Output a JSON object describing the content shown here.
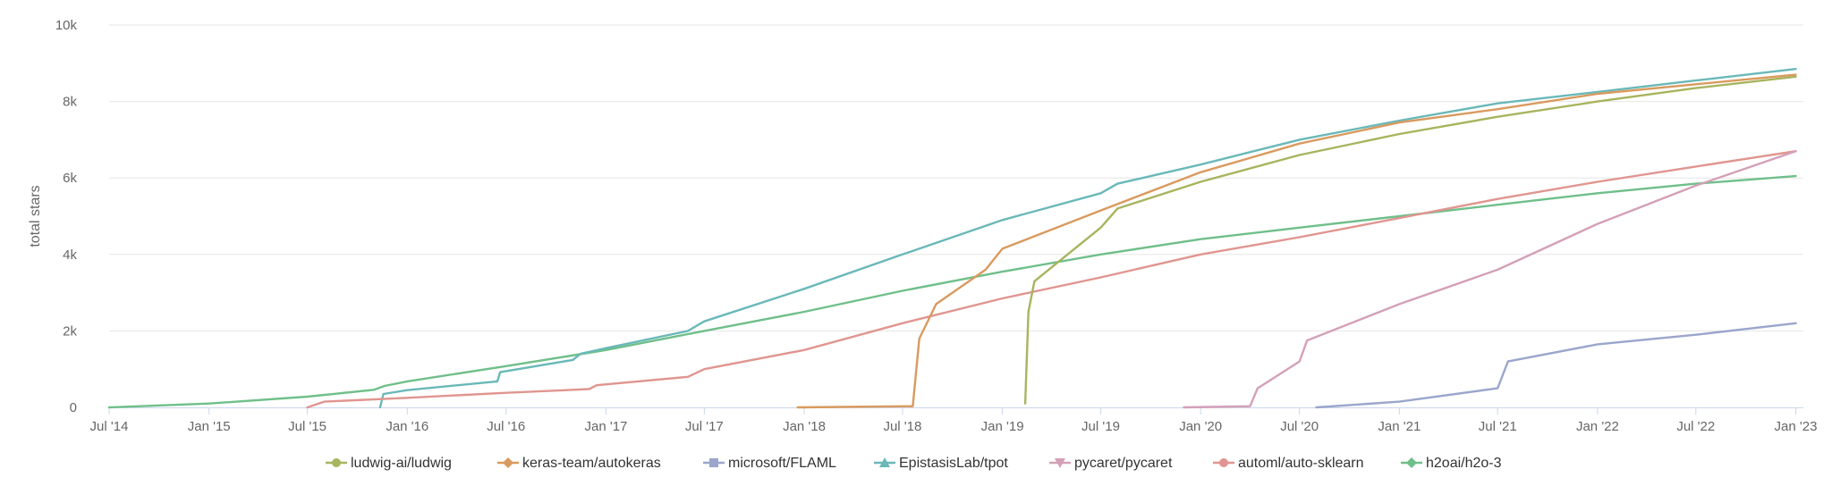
{
  "chart_data": {
    "type": "line",
    "title": "",
    "xlabel": "",
    "ylabel": "total stars",
    "x_type": "date",
    "xlim": [
      "2014-07-01",
      "2023-01-15"
    ],
    "ylim": [
      0,
      10000
    ],
    "grid": "horizontal",
    "legend_position": "bottom",
    "y_ticks": [
      {
        "value": 0,
        "label": "0"
      },
      {
        "value": 2000,
        "label": "2k"
      },
      {
        "value": 4000,
        "label": "4k"
      },
      {
        "value": 6000,
        "label": "6k"
      },
      {
        "value": 8000,
        "label": "8k"
      },
      {
        "value": 10000,
        "label": "10k"
      }
    ],
    "x_ticks": [
      {
        "date": "2014-07-01",
        "label": "Jul '14"
      },
      {
        "date": "2015-01-01",
        "label": "Jan '15"
      },
      {
        "date": "2015-07-01",
        "label": "Jul '15"
      },
      {
        "date": "2016-01-01",
        "label": "Jan '16"
      },
      {
        "date": "2016-07-01",
        "label": "Jul '16"
      },
      {
        "date": "2017-01-01",
        "label": "Jan '17"
      },
      {
        "date": "2017-07-01",
        "label": "Jul '17"
      },
      {
        "date": "2018-01-01",
        "label": "Jan '18"
      },
      {
        "date": "2018-07-01",
        "label": "Jul '18"
      },
      {
        "date": "2019-01-01",
        "label": "Jan '19"
      },
      {
        "date": "2019-07-01",
        "label": "Jul '19"
      },
      {
        "date": "2020-01-01",
        "label": "Jan '20"
      },
      {
        "date": "2020-07-01",
        "label": "Jul '20"
      },
      {
        "date": "2021-01-01",
        "label": "Jan '21"
      },
      {
        "date": "2021-07-01",
        "label": "Jul '21"
      },
      {
        "date": "2022-01-01",
        "label": "Jan '22"
      },
      {
        "date": "2022-07-01",
        "label": "Jul '22"
      },
      {
        "date": "2023-01-01",
        "label": "Jan '23"
      }
    ],
    "series": [
      {
        "name": "h2oai/h2o-3",
        "color": "#6fbf8a",
        "marker": "diamond",
        "points": [
          [
            "2014-07-01",
            0
          ],
          [
            "2015-01-01",
            100
          ],
          [
            "2015-07-01",
            280
          ],
          [
            "2015-11-01",
            460
          ],
          [
            "2015-11-20",
            560
          ],
          [
            "2016-01-01",
            680
          ],
          [
            "2016-07-01",
            1080
          ],
          [
            "2017-01-01",
            1500
          ],
          [
            "2017-07-01",
            2000
          ],
          [
            "2018-01-01",
            2500
          ],
          [
            "2018-07-01",
            3050
          ],
          [
            "2019-01-01",
            3550
          ],
          [
            "2019-07-01",
            4000
          ],
          [
            "2020-01-01",
            4400
          ],
          [
            "2020-07-01",
            4700
          ],
          [
            "2021-01-01",
            5000
          ],
          [
            "2021-07-01",
            5300
          ],
          [
            "2022-01-01",
            5600
          ],
          [
            "2022-07-01",
            5850
          ],
          [
            "2023-01-01",
            6050
          ]
        ]
      },
      {
        "name": "EpistasisLab/tpot",
        "color": "#6ab8b8",
        "marker": "triangle",
        "points": [
          [
            "2015-11-12",
            0
          ],
          [
            "2015-11-18",
            350
          ],
          [
            "2016-01-01",
            450
          ],
          [
            "2016-06-15",
            680
          ],
          [
            "2016-06-20",
            920
          ],
          [
            "2016-11-01",
            1240
          ],
          [
            "2016-11-15",
            1400
          ],
          [
            "2017-01-01",
            1550
          ],
          [
            "2017-06-01",
            2000
          ],
          [
            "2017-07-01",
            2250
          ],
          [
            "2018-01-01",
            3100
          ],
          [
            "2018-07-01",
            4000
          ],
          [
            "2019-01-01",
            4900
          ],
          [
            "2019-07-01",
            5600
          ],
          [
            "2019-08-01",
            5850
          ],
          [
            "2020-01-01",
            6350
          ],
          [
            "2020-07-01",
            7000
          ],
          [
            "2021-01-01",
            7500
          ],
          [
            "2021-07-01",
            7950
          ],
          [
            "2022-01-01",
            8250
          ],
          [
            "2022-07-01",
            8550
          ],
          [
            "2023-01-01",
            8850
          ]
        ]
      },
      {
        "name": "automl/auto-sklearn",
        "color": "#e09590",
        "marker": "circle",
        "points": [
          [
            "2015-07-01",
            0
          ],
          [
            "2015-08-01",
            150
          ],
          [
            "2016-01-01",
            250
          ],
          [
            "2016-07-01",
            380
          ],
          [
            "2016-12-01",
            480
          ],
          [
            "2016-12-15",
            580
          ],
          [
            "2017-06-01",
            800
          ],
          [
            "2017-07-01",
            1000
          ],
          [
            "2018-01-01",
            1500
          ],
          [
            "2018-07-01",
            2200
          ],
          [
            "2019-01-01",
            2850
          ],
          [
            "2019-07-01",
            3400
          ],
          [
            "2020-01-01",
            4000
          ],
          [
            "2020-07-01",
            4450
          ],
          [
            "2021-01-01",
            4950
          ],
          [
            "2021-07-01",
            5450
          ],
          [
            "2022-01-01",
            5900
          ],
          [
            "2022-07-01",
            6300
          ],
          [
            "2023-01-01",
            6700
          ]
        ]
      },
      {
        "name": "keras-team/autokeras",
        "color": "#d99a5e",
        "marker": "diamond",
        "points": [
          [
            "2017-12-20",
            0
          ],
          [
            "2018-07-20",
            30
          ],
          [
            "2018-08-01",
            1800
          ],
          [
            "2018-09-01",
            2700
          ],
          [
            "2018-12-01",
            3600
          ],
          [
            "2019-01-01",
            4150
          ],
          [
            "2019-07-01",
            5150
          ],
          [
            "2020-01-01",
            6150
          ],
          [
            "2020-07-01",
            6900
          ],
          [
            "2021-01-01",
            7450
          ],
          [
            "2021-07-01",
            7800
          ],
          [
            "2022-01-01",
            8200
          ],
          [
            "2022-07-01",
            8450
          ],
          [
            "2023-01-01",
            8700
          ]
        ]
      },
      {
        "name": "ludwig-ai/ludwig",
        "color": "#a8b45e",
        "marker": "circle",
        "points": [
          [
            "2019-02-12",
            100
          ],
          [
            "2019-02-18",
            2500
          ],
          [
            "2019-03-01",
            3300
          ],
          [
            "2019-07-01",
            4700
          ],
          [
            "2019-08-01",
            5200
          ],
          [
            "2020-01-01",
            5900
          ],
          [
            "2020-07-01",
            6600
          ],
          [
            "2021-01-01",
            7150
          ],
          [
            "2021-07-01",
            7600
          ],
          [
            "2022-01-01",
            8000
          ],
          [
            "2022-07-01",
            8350
          ],
          [
            "2023-01-01",
            8650
          ]
        ]
      },
      {
        "name": "pycaret/pycaret",
        "color": "#d4a0b8",
        "marker": "triangle-down",
        "points": [
          [
            "2019-12-01",
            0
          ],
          [
            "2020-04-01",
            30
          ],
          [
            "2020-04-15",
            500
          ],
          [
            "2020-07-01",
            1200
          ],
          [
            "2020-07-15",
            1750
          ],
          [
            "2021-01-01",
            2700
          ],
          [
            "2021-07-01",
            3600
          ],
          [
            "2022-01-01",
            4800
          ],
          [
            "2022-07-01",
            5800
          ],
          [
            "2023-01-01",
            6700
          ]
        ]
      },
      {
        "name": "microsoft/FLAML",
        "color": "#9aa6cc",
        "marker": "square",
        "points": [
          [
            "2020-08-01",
            0
          ],
          [
            "2021-01-01",
            150
          ],
          [
            "2021-07-01",
            500
          ],
          [
            "2021-07-20",
            1200
          ],
          [
            "2022-01-01",
            1650
          ],
          [
            "2022-07-01",
            1900
          ],
          [
            "2023-01-01",
            2200
          ]
        ]
      }
    ],
    "legend": [
      {
        "name": "ludwig-ai/ludwig",
        "color": "#a8b45e",
        "marker": "circle"
      },
      {
        "name": "keras-team/autokeras",
        "color": "#d99a5e",
        "marker": "diamond"
      },
      {
        "name": "microsoft/FLAML",
        "color": "#9aa6cc",
        "marker": "square"
      },
      {
        "name": "EpistasisLab/tpot",
        "color": "#6ab8b8",
        "marker": "triangle"
      },
      {
        "name": "pycaret/pycaret",
        "color": "#d4a0b8",
        "marker": "triangle-down"
      },
      {
        "name": "automl/auto-sklearn",
        "color": "#e09590",
        "marker": "circle"
      },
      {
        "name": "h2oai/h2o-3",
        "color": "#6fbf8a",
        "marker": "diamond"
      }
    ]
  }
}
